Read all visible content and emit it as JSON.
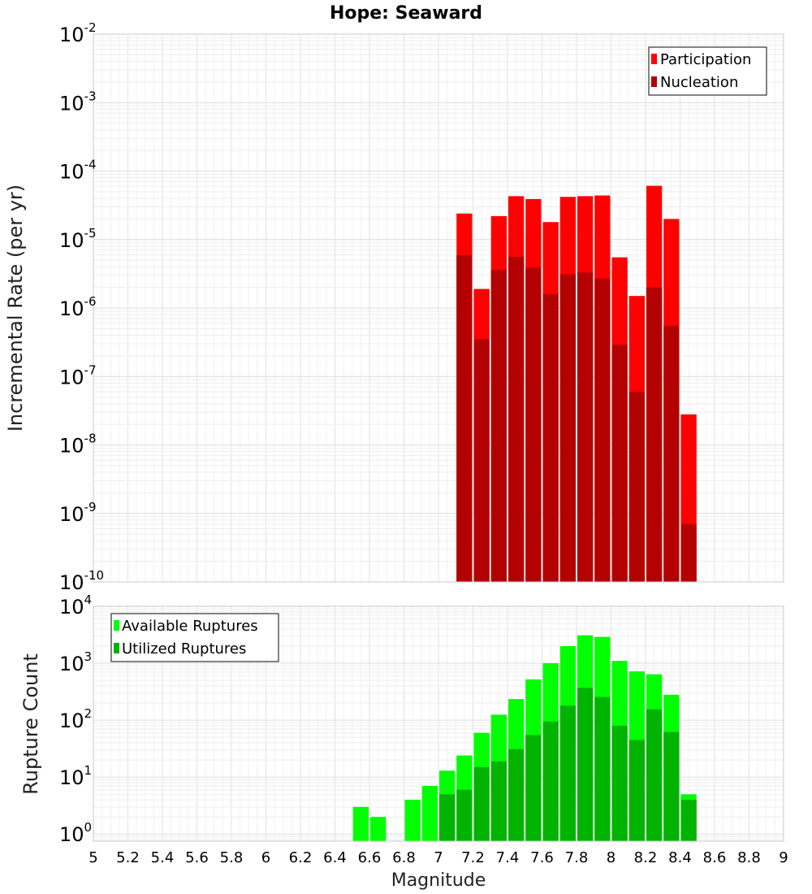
{
  "chart_data": [
    {
      "type": "bar",
      "title": "Hope: Seaward",
      "xlabel": "",
      "ylabel": "Incremental Rate (per yr)",
      "yscale": "log",
      "xlim": [
        5,
        9
      ],
      "ylim": [
        1e-10,
        0.01
      ],
      "grid": true,
      "legend_position": "top-right",
      "bar_width": 0.1,
      "y_ticks": [
        {
          "base": "10",
          "exp": "-10",
          "value": 1e-10
        },
        {
          "base": "10",
          "exp": "-9",
          "value": 1e-09
        },
        {
          "base": "10",
          "exp": "-8",
          "value": 1e-08
        },
        {
          "base": "10",
          "exp": "-7",
          "value": 1e-07
        },
        {
          "base": "10",
          "exp": "-6",
          "value": 1e-06
        },
        {
          "base": "10",
          "exp": "-5",
          "value": 1e-05
        },
        {
          "base": "10",
          "exp": "-4",
          "value": 0.0001
        },
        {
          "base": "10",
          "exp": "-3",
          "value": 0.001
        },
        {
          "base": "10",
          "exp": "-2",
          "value": 0.01
        }
      ],
      "x": [
        7.15,
        7.25,
        7.35,
        7.45,
        7.55,
        7.65,
        7.75,
        7.85,
        7.95,
        8.05,
        8.15,
        8.25,
        8.35,
        8.45
      ],
      "series": [
        {
          "name": "Participation",
          "color": "#ff0000",
          "values": [
            2.4e-05,
            1.9e-06,
            2.2e-05,
            4.3e-05,
            3.9e-05,
            1.8e-05,
            4.2e-05,
            4.3e-05,
            4.4e-05,
            5.5e-06,
            1.5e-06,
            6.1e-05,
            2e-05,
            2.8e-08
          ]
        },
        {
          "name": "Nucleation",
          "color": "#b30000",
          "values": [
            5.9e-06,
            3.5e-07,
            3.6e-06,
            5.6e-06,
            3.9e-06,
            1.6e-06,
            3.1e-06,
            3.3e-06,
            2.7e-06,
            2.9e-07,
            6e-08,
            2e-06,
            5.5e-07,
            7e-10
          ]
        }
      ]
    },
    {
      "type": "bar",
      "title": "",
      "xlabel": "Magnitude",
      "ylabel": "Rupture Count",
      "yscale": "log",
      "xlim": [
        5,
        9
      ],
      "ylim": [
        0.75,
        10000
      ],
      "grid": true,
      "legend_position": "top-left",
      "bar_width": 0.1,
      "x_ticks": [
        "5",
        "5.2",
        "5.4",
        "5.6",
        "5.8",
        "6",
        "6.2",
        "6.4",
        "6.6",
        "6.8",
        "7",
        "7.2",
        "7.4",
        "7.6",
        "7.8",
        "8",
        "8.2",
        "8.4",
        "8.6",
        "8.8",
        "9"
      ],
      "y_ticks": [
        {
          "base": "10",
          "exp": "0",
          "value": 1
        },
        {
          "base": "10",
          "exp": "1",
          "value": 10
        },
        {
          "base": "10",
          "exp": "2",
          "value": 100
        },
        {
          "base": "10",
          "exp": "3",
          "value": 1000
        },
        {
          "base": "10",
          "exp": "4",
          "value": 10000
        }
      ],
      "x": [
        6.55,
        6.65,
        6.85,
        6.95,
        7.05,
        7.15,
        7.25,
        7.35,
        7.45,
        7.55,
        7.65,
        7.75,
        7.85,
        7.95,
        8.05,
        8.15,
        8.25,
        8.35,
        8.45
      ],
      "series": [
        {
          "name": "Available Ruptures",
          "color": "#00ff00",
          "values": [
            3,
            2,
            4,
            7,
            13,
            24,
            60,
            125,
            235,
            520,
            1000,
            2000,
            3100,
            2900,
            1100,
            720,
            640,
            280,
            5
          ]
        },
        {
          "name": "Utilized Ruptures",
          "color": "#00b300",
          "values": [
            null,
            null,
            null,
            null,
            5,
            6,
            15,
            19,
            31,
            55,
            95,
            180,
            370,
            255,
            80,
            45,
            155,
            62,
            4
          ]
        }
      ]
    }
  ]
}
